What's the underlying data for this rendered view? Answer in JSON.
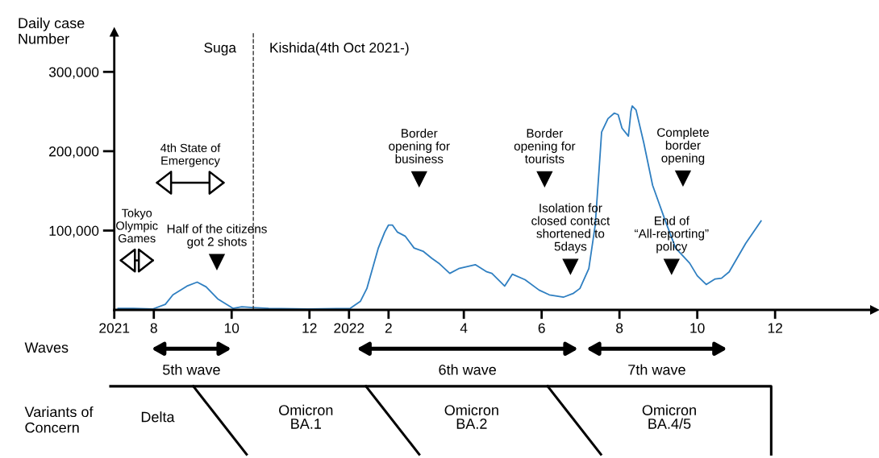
{
  "chart_data": {
    "type": "line",
    "ylabel": "Daily case\nNumber",
    "x": [
      "2021-07-04",
      "2021-07-16",
      "2021-07-31",
      "2021-08-10",
      "2021-08-16",
      "2021-08-27",
      "2021-09-04",
      "2021-09-11",
      "2021-09-20",
      "2021-10-02",
      "2021-10-09",
      "2021-10-18",
      "2021-10-30",
      "2021-11-30",
      "2022-01-02",
      "2022-01-10",
      "2022-01-15",
      "2022-01-24",
      "2022-01-29",
      "2022-02-01",
      "2022-02-04",
      "2022-02-08",
      "2022-02-14",
      "2022-02-21",
      "2022-02-28",
      "2022-03-07",
      "2022-03-13",
      "2022-03-21",
      "2022-03-28",
      "2022-04-10",
      "2022-04-19",
      "2022-04-23",
      "2022-05-03",
      "2022-05-09",
      "2022-05-19",
      "2022-05-30",
      "2022-06-07",
      "2022-06-18",
      "2022-06-26",
      "2022-07-01",
      "2022-07-08",
      "2022-07-13",
      "2022-07-16",
      "2022-07-18",
      "2022-07-23",
      "2022-07-28",
      "2022-07-31",
      "2022-08-03",
      "2022-08-08",
      "2022-08-10",
      "2022-08-11",
      "2022-08-14",
      "2022-08-20",
      "2022-08-27",
      "2022-09-06",
      "2022-09-14",
      "2022-09-25",
      "2022-10-01",
      "2022-10-08",
      "2022-10-15",
      "2022-10-20",
      "2022-10-26",
      "2022-11-08",
      "2022-11-20"
    ],
    "series": [
      {
        "color": "#2f7fc1",
        "values": [
          2000,
          2000,
          1000,
          7000,
          19000,
          30000,
          35000,
          29000,
          14000,
          2000,
          4000,
          3000,
          2000,
          1000,
          2000,
          11000,
          27000,
          78000,
          98000,
          107000,
          107000,
          98000,
          93000,
          78000,
          74000,
          65000,
          58000,
          46000,
          52000,
          57000,
          48000,
          46000,
          30000,
          45000,
          38000,
          25000,
          19000,
          16000,
          21000,
          27000,
          52000,
          107000,
          176000,
          224000,
          241000,
          248000,
          246000,
          229000,
          219000,
          250000,
          257000,
          252000,
          211000,
          157000,
          112000,
          78000,
          59000,
          43000,
          32000,
          39000,
          40000,
          48000,
          84000,
          112000
        ]
      }
    ],
    "xlim": [
      "2021-07-01",
      "2023-02-17"
    ],
    "xticks": [
      {
        "value": "2021-07-01",
        "label": "2021"
      },
      {
        "value": "2021-08-01",
        "label": "8"
      },
      {
        "value": "2021-10-01",
        "label": "10"
      },
      {
        "value": "2021-12-01",
        "label": "12"
      },
      {
        "value": "2022-01-01",
        "label": "2022"
      },
      {
        "value": "2022-02-01",
        "label": "2"
      },
      {
        "value": "2022-04-01",
        "label": "4"
      },
      {
        "value": "2022-06-01",
        "label": "6"
      },
      {
        "value": "2022-08-01",
        "label": "8"
      },
      {
        "value": "2022-10-01",
        "label": "10"
      },
      {
        "value": "2022-12-01",
        "label": "12"
      }
    ],
    "ylim": [
      0,
      350000
    ],
    "yticks": [
      {
        "value": 100000,
        "label": "100,000"
      },
      {
        "value": 200000,
        "label": "200,000"
      },
      {
        "value": 300000,
        "label": "300,000"
      }
    ],
    "marker": "none",
    "line_style": "solid",
    "ref_lines": [
      {
        "axis": "x",
        "value": "2021-10-18",
        "line_style": "dashed",
        "color": "#333333"
      }
    ],
    "annotations": [
      "Suga",
      "Kishida(4th Oct 2021-)",
      "Tokyo\nOlympic\nGames",
      "4th State of\nEmergency",
      "Half of the citizens\ngot 2 shots",
      "Border\nopening for\nbusiness",
      "Border\nopening for\ntourists",
      "Isolation for\nclosed contact\nshortened to\n5days",
      "Complete\nborder\nopening",
      "End of\n“All-reporting”\npolicy",
      "5th wave",
      "6th wave",
      "7th wave",
      "Waves",
      "Variants of\nConcern",
      "Delta",
      "Omicron\nBA.1",
      "Omicron\nBA.2",
      "Omicron\nBA.4/5"
    ]
  }
}
